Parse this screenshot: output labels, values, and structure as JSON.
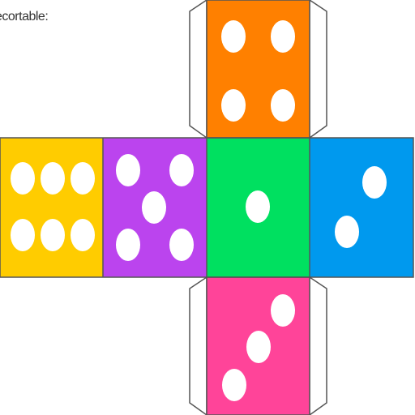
{
  "caption": "ecortable:",
  "faces": [
    {
      "name": "top-face",
      "color": "#ff8000",
      "pips": 4
    },
    {
      "name": "left-face",
      "color": "#ffcc00",
      "pips": 6
    },
    {
      "name": "center-left-face",
      "color": "#bb44ee",
      "pips": 5
    },
    {
      "name": "center-face",
      "color": "#00e060",
      "pips": 1
    },
    {
      "name": "right-face",
      "color": "#0099ee",
      "pips": 2
    },
    {
      "name": "bottom-face",
      "color": "#ff4499",
      "pips": 3
    }
  ],
  "pip_color": "#ffffff",
  "outline_color": "#555555"
}
